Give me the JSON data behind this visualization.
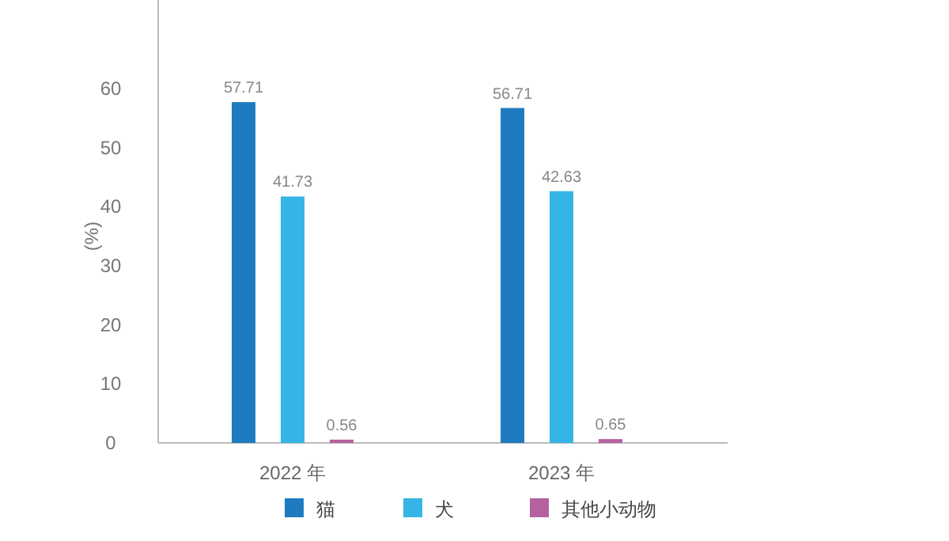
{
  "chart_data": {
    "type": "bar",
    "ylabel": "(%)",
    "categories": [
      "2022 年",
      "2023 年"
    ],
    "series": [
      {
        "name": "猫",
        "color": "#1f7bbf",
        "values": [
          57.71,
          56.71
        ]
      },
      {
        "name": "犬",
        "color": "#35b5e5",
        "values": [
          41.73,
          42.63
        ]
      },
      {
        "name": "其他小动物",
        "color": "#b5619f",
        "values": [
          0.56,
          0.65
        ]
      }
    ],
    "ylim": [
      0,
      75
    ],
    "yticks": [
      0,
      10,
      20,
      30,
      40,
      50,
      60
    ],
    "data_labels": true,
    "legend": "bottom",
    "grid": false
  }
}
